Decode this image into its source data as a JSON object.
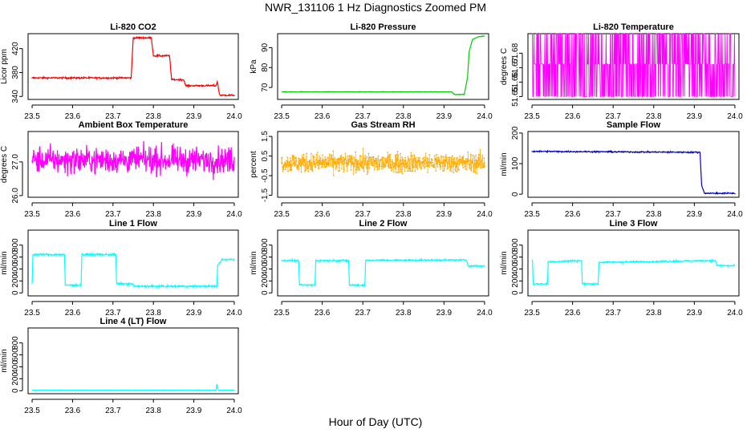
{
  "title": "NWR_131106  1 Hz Diagnostics Zoomed PM",
  "xlabel": "Hour of Day (UTC)",
  "chart_data": [
    {
      "type": "line",
      "title": "Li-820 CO2",
      "ylabel": "Licor ppm",
      "color": "#ff0000",
      "xlim": [
        23.5,
        24.0
      ],
      "ylim": [
        335,
        445
      ],
      "xticks": [
        "23.5",
        "23.6",
        "23.7",
        "23.8",
        "23.9",
        "24.0"
      ],
      "yticks": [
        340,
        380,
        420
      ],
      "noise": 1,
      "series": [
        {
          "x": [
            23.5,
            23.745,
            23.75,
            23.795,
            23.8,
            23.84,
            23.845,
            23.875,
            23.88,
            23.955,
            23.958,
            23.963,
            23.965,
            24.0
          ],
          "y": [
            371,
            371,
            438,
            438,
            408,
            408,
            368,
            368,
            358,
            358,
            365,
            345,
            342,
            342
          ]
        }
      ]
    },
    {
      "type": "line",
      "title": "Li-820 Pressure",
      "ylabel": "kPa",
      "color": "#00cc00",
      "xlim": [
        23.5,
        24.0
      ],
      "ylim": [
        64,
        97
      ],
      "xticks": [
        "23.5",
        "23.6",
        "23.7",
        "23.8",
        "23.9",
        "24.0"
      ],
      "yticks": [
        70,
        80,
        90
      ],
      "noise": 0.1,
      "series": [
        {
          "x": [
            23.5,
            23.92,
            23.925,
            23.95,
            23.958,
            23.962,
            23.97,
            23.985,
            24.0
          ],
          "y": [
            67.8,
            67.8,
            66.5,
            66.5,
            75,
            88,
            94,
            95.5,
            95.8
          ]
        }
      ]
    },
    {
      "type": "line",
      "title": "Li-820 Temperature",
      "ylabel": "degrees C",
      "color": "#ff00ff",
      "xlim": [
        23.5,
        24.0
      ],
      "ylim": [
        51.648,
        51.6935
      ],
      "xticks": [
        "23.5",
        "23.6",
        "23.7",
        "23.8",
        "23.9",
        "24.0"
      ],
      "yticks": [
        "51.65",
        "51.66",
        "51.67",
        "51.68"
      ],
      "levels": [
        51.65,
        51.6725,
        51.6935
      ],
      "base": 51.6725
    },
    {
      "type": "line",
      "title": "Ambient Box Temperature",
      "ylabel": "degrees C",
      "color": "#ff00ff",
      "xlim": [
        23.5,
        24.0
      ],
      "ylim": [
        25.95,
        27.9
      ],
      "xticks": [
        "23.5",
        "23.6",
        "23.7",
        "23.8",
        "23.9",
        "24.0"
      ],
      "yticks": [
        "26.0",
        "27.0"
      ],
      "noise": 0.28,
      "series": [
        {
          "x": [
            23.5,
            24.0
          ],
          "y": [
            27.05,
            27.05
          ]
        }
      ]
    },
    {
      "type": "scatter",
      "title": "Gas Stream RH",
      "ylabel": "percent",
      "color": "#ffaa00",
      "xlim": [
        23.5,
        24.0
      ],
      "ylim": [
        -1.6,
        1.75
      ],
      "xticks": [
        "23.5",
        "23.6",
        "23.7",
        "23.8",
        "23.9",
        "24.0"
      ],
      "yticks": [
        "-1.5",
        "-0.5",
        "0.5",
        "1.5"
      ],
      "noise": 0.35,
      "series": [
        {
          "x": [
            23.5,
            24.0
          ],
          "y": [
            0.15,
            0.15
          ]
        }
      ]
    },
    {
      "type": "line",
      "title": "Sample Flow",
      "ylabel": "ml/min",
      "color": "#0000cc",
      "xlim": [
        23.5,
        24.0
      ],
      "ylim": [
        -10,
        205
      ],
      "xticks": [
        "23.5",
        "23.6",
        "23.7",
        "23.8",
        "23.9",
        "24.0"
      ],
      "yticks": [
        0,
        100,
        200
      ],
      "noise": 1.5,
      "series": [
        {
          "x": [
            23.5,
            23.914,
            23.918,
            23.925,
            24.0
          ],
          "y": [
            140,
            137,
            30,
            3,
            3
          ]
        }
      ]
    },
    {
      "type": "line",
      "title": "Line 1 Flow",
      "ylabel": "ml/min",
      "color": "#00ffff",
      "xlim": [
        23.5,
        24.0
      ],
      "ylim": [
        -50,
        1050
      ],
      "xticks": [
        "23.5",
        "23.6",
        "23.7",
        "23.8",
        "23.9",
        "24.0"
      ],
      "yticks": [
        0,
        200,
        400,
        600,
        800
      ],
      "noise": 12,
      "series": [
        {
          "x": [
            23.5,
            23.502,
            23.58,
            23.582,
            23.621,
            23.623,
            23.707,
            23.709,
            23.75,
            23.752,
            23.957,
            23.959,
            23.97,
            24.0
          ],
          "y": [
            150,
            640,
            640,
            130,
            130,
            640,
            640,
            150,
            150,
            110,
            110,
            460,
            560,
            560
          ]
        }
      ]
    },
    {
      "type": "line",
      "title": "Line 2 Flow",
      "ylabel": "ml/min",
      "color": "#00ffff",
      "xlim": [
        23.5,
        24.0
      ],
      "ylim": [
        -50,
        1050
      ],
      "xticks": [
        "23.5",
        "23.6",
        "23.7",
        "23.8",
        "23.9",
        "24.0"
      ],
      "yticks": [
        0,
        200,
        400,
        600,
        800
      ],
      "noise": 10,
      "series": [
        {
          "x": [
            23.5,
            23.542,
            23.544,
            23.582,
            23.584,
            23.665,
            23.667,
            23.705,
            23.707,
            23.955,
            23.96,
            24.0
          ],
          "y": [
            540,
            540,
            130,
            130,
            540,
            540,
            130,
            130,
            545,
            550,
            450,
            450
          ]
        }
      ]
    },
    {
      "type": "line",
      "title": "Line 3 Flow",
      "ylabel": "ml/min",
      "color": "#00ffff",
      "xlim": [
        23.5,
        24.0
      ],
      "ylim": [
        -50,
        1050
      ],
      "xticks": [
        "23.5",
        "23.6",
        "23.7",
        "23.8",
        "23.9",
        "24.0"
      ],
      "yticks": [
        0,
        200,
        400,
        600,
        800
      ],
      "noise": 10,
      "series": [
        {
          "x": [
            23.5,
            23.501,
            23.503,
            23.538,
            23.54,
            23.622,
            23.624,
            23.663,
            23.665,
            23.952,
            23.956,
            24.0
          ],
          "y": [
            550,
            550,
            150,
            150,
            520,
            540,
            150,
            150,
            510,
            540,
            460,
            450
          ]
        }
      ]
    },
    {
      "type": "line",
      "title": "Line 4 (LT) Flow",
      "ylabel": "ml/min",
      "color": "#00ffff",
      "xlim": [
        23.5,
        24.0
      ],
      "ylim": [
        -50,
        1050
      ],
      "xticks": [
        "23.5",
        "23.6",
        "23.7",
        "23.8",
        "23.9",
        "24.0"
      ],
      "yticks": [
        0,
        200,
        400,
        600,
        800
      ],
      "noise": 2,
      "series": [
        {
          "x": [
            23.5,
            23.955,
            23.957,
            23.959,
            23.961,
            24.0
          ],
          "y": [
            8,
            8,
            110,
            40,
            8,
            8
          ]
        }
      ]
    }
  ]
}
